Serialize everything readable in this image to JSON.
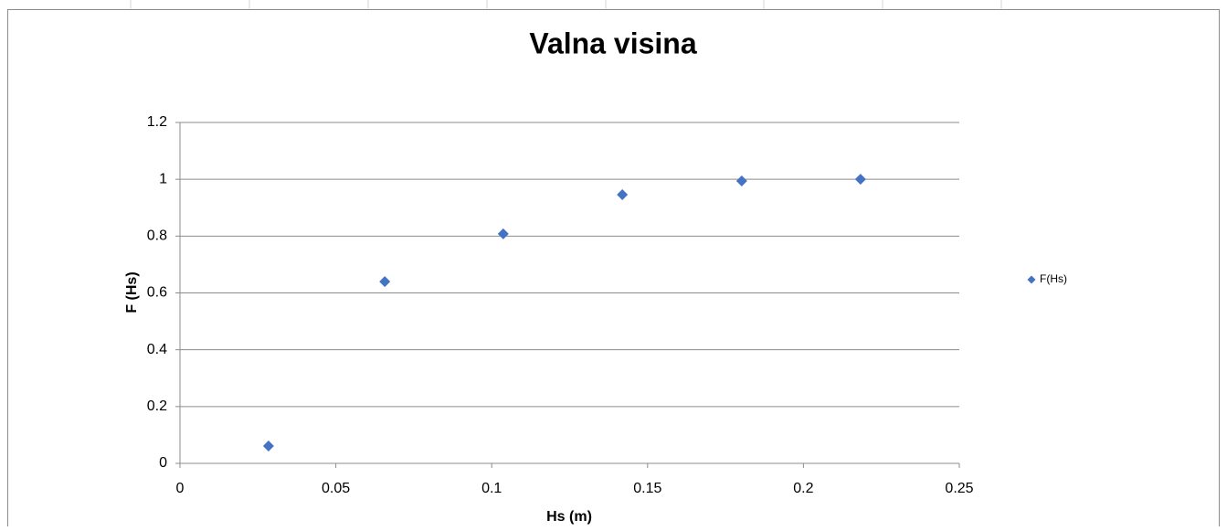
{
  "chart_data": {
    "type": "scatter",
    "title": "Valna visina",
    "x_label": "Hs (m)",
    "y_label": "F (Hs)",
    "series": [
      {
        "name": "F(Hs)",
        "color": "#4472c4",
        "x": [
          0.0284,
          0.0657,
          0.1037,
          0.1419,
          0.1802,
          0.2183
        ],
        "values": [
          0.061,
          0.64,
          0.808,
          0.946,
          0.994,
          1.0
        ]
      }
    ],
    "xlim": [
      0,
      0.25
    ],
    "xticks": [
      0,
      0.05,
      0.1,
      0.15,
      0.2,
      0.25
    ],
    "ylim": [
      0,
      1.2
    ],
    "yticks": [
      0,
      0.2,
      0.4,
      0.6,
      0.8,
      1,
      1.2
    ],
    "grid": true,
    "legend": "right"
  }
}
